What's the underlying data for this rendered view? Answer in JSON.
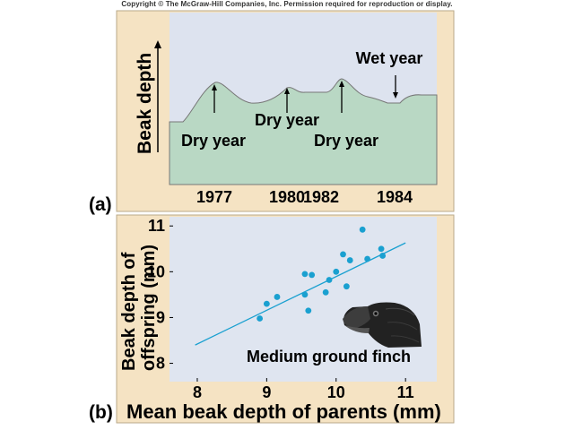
{
  "copyright": "Copyright © The McGraw-Hill Companies, Inc. Permission required for reproduction or display.",
  "colors": {
    "outer_panel": "#f5e3c3",
    "plot_bg_a": "#dde3ef",
    "area_fill": "#b9d8c4",
    "plot_bg_b": "#dfe5f0",
    "point": "#1aa0d0",
    "line": "#1aa0d0"
  },
  "chart_data": [
    {
      "panel": "(a)",
      "type": "area",
      "title": "",
      "ylabel": "Beak depth",
      "xlabel": "",
      "x_ticks": [
        "1977",
        "1980",
        "1982",
        "1984"
      ],
      "annotations": [
        {
          "text": "Dry year",
          "near": "1977"
        },
        {
          "text": "Dry year",
          "near": "1980"
        },
        {
          "text": "Dry year",
          "near": "1982"
        },
        {
          "text": "Wet year",
          "near": "1984"
        }
      ]
    },
    {
      "panel": "(b)",
      "type": "scatter",
      "xlabel": "Mean beak depth of parents (mm)",
      "ylabel_line1": "Beak depth of",
      "ylabel_line2": "offspring (mm)",
      "annotation": "Medium ground finch",
      "xlim": [
        7.6,
        11.45
      ],
      "ylim": [
        7.6,
        11.2
      ],
      "x_ticks": [
        "8",
        "9",
        "10",
        "11"
      ],
      "y_ticks": [
        "8",
        "9",
        "10",
        "11"
      ],
      "points": [
        {
          "x": 8.9,
          "y": 8.98
        },
        {
          "x": 9.0,
          "y": 9.3
        },
        {
          "x": 9.15,
          "y": 9.45
        },
        {
          "x": 9.55,
          "y": 9.95
        },
        {
          "x": 9.55,
          "y": 9.5
        },
        {
          "x": 9.6,
          "y": 9.15
        },
        {
          "x": 9.65,
          "y": 9.93
        },
        {
          "x": 9.85,
          "y": 9.55
        },
        {
          "x": 9.9,
          "y": 9.82
        },
        {
          "x": 10.0,
          "y": 10.0
        },
        {
          "x": 10.1,
          "y": 10.38
        },
        {
          "x": 10.15,
          "y": 9.68
        },
        {
          "x": 10.2,
          "y": 10.25
        },
        {
          "x": 10.38,
          "y": 10.92
        },
        {
          "x": 10.45,
          "y": 10.28
        },
        {
          "x": 10.65,
          "y": 10.5
        },
        {
          "x": 10.67,
          "y": 10.35
        }
      ],
      "fit_line": {
        "x": [
          7.97,
          11.0
        ],
        "y": [
          8.4,
          10.63
        ]
      }
    }
  ]
}
